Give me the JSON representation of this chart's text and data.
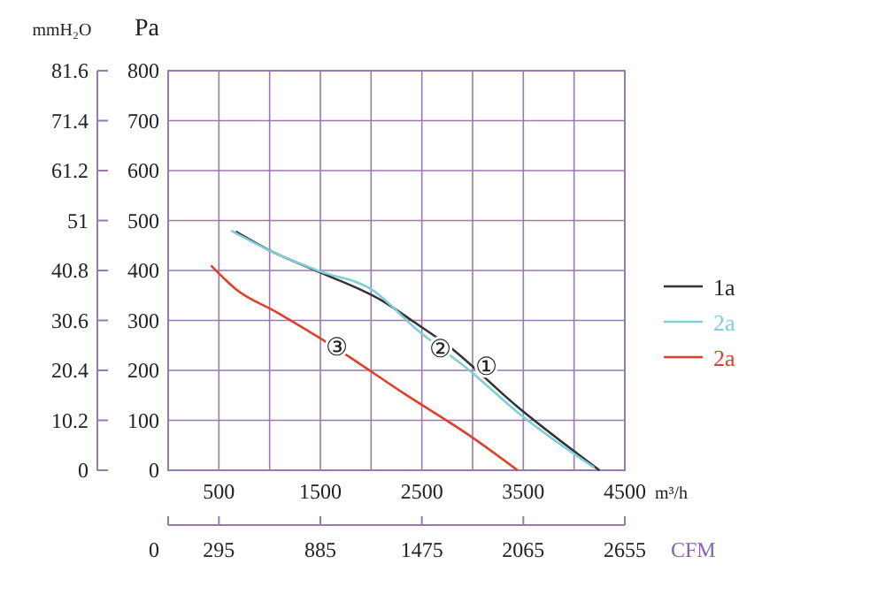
{
  "chart_data": {
    "type": "line",
    "ylabel": "Pa",
    "y2label": "mmH₂O",
    "xlabel": "m³/h",
    "x2label": "CFM",
    "xlim": [
      0,
      4500
    ],
    "xticks": [
      {
        "value": 0,
        "label": null
      },
      500,
      {
        "value": 1000,
        "label": null
      },
      1500,
      {
        "value": 2000,
        "label": null
      },
      2500,
      {
        "value": 3000,
        "label": null
      },
      3500,
      {
        "value": 4000,
        "label": null
      },
      4500
    ],
    "x2lim": [
      0,
      2655
    ],
    "x2ticks": [
      0,
      295,
      885,
      1475,
      2065,
      2655
    ],
    "ylim": [
      0,
      800
    ],
    "yticks": [
      0,
      100,
      200,
      300,
      400,
      500,
      600,
      700,
      800
    ],
    "y2lim": [
      0,
      81.6
    ],
    "y2ticks": [
      0,
      10.2,
      20.4,
      30.6,
      40.8,
      51.0,
      61.2,
      71.4,
      81.6
    ],
    "grid": true,
    "legend": "right",
    "marker": "none",
    "line_style": "solid",
    "series": [
      {
        "name": "1a",
        "color": "#333333",
        "x": [
          665,
          1000,
          1476,
          2112,
          2400,
          2748,
          3443,
          4250
        ],
        "values": [
          478,
          440,
          398,
          339,
          300,
          251,
          127,
          0
        ]
      },
      {
        "name": "2a",
        "color": "#7fcfd8",
        "x": [
          620,
          1071,
          1500,
          1997,
          2460,
          2981,
          3443,
          4200
        ],
        "values": [
          480,
          433,
          398,
          363,
          280,
          198,
          116,
          5
        ]
      },
      {
        "name": "2a",
        "color": "#e0402a",
        "x": [
          422,
          665,
          1071,
          1649,
          2344,
          2981,
          3443
        ],
        "values": [
          410,
          363,
          316,
          245,
          151,
          68,
          0
        ]
      }
    ],
    "annotations": [
      {
        "text": "①",
        "x": 3142,
        "y": 208
      },
      {
        "text": "②",
        "x": 2690,
        "y": 244
      },
      {
        "text": "③",
        "x": 1667,
        "y": 247
      }
    ]
  }
}
